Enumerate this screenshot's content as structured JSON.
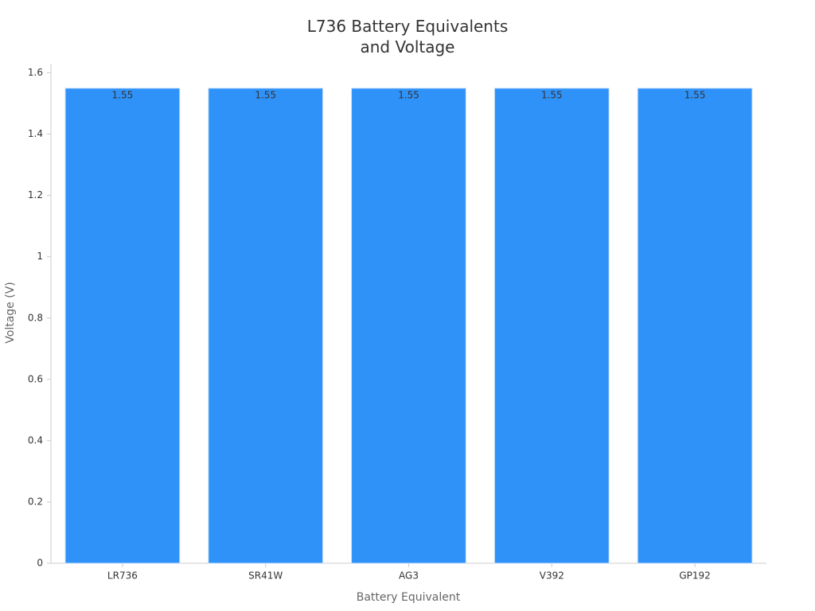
{
  "chart_data": {
    "type": "bar",
    "title": "L736 Battery Equivalents and Voltage",
    "x_label": "Battery Equivalent",
    "y_label": "Voltage (V)",
    "categories": [
      "LR736",
      "SR41W",
      "AG3",
      "V392",
      "GP192"
    ],
    "values": [
      1.55,
      1.55,
      1.55,
      1.55,
      1.55
    ],
    "color": "#2f92f9",
    "ylim": [
      0,
      1.63
    ],
    "yticks": [
      0,
      0.2,
      0.4,
      0.6,
      0.8,
      1,
      1.2,
      1.4,
      1.6
    ],
    "grid": false
  }
}
